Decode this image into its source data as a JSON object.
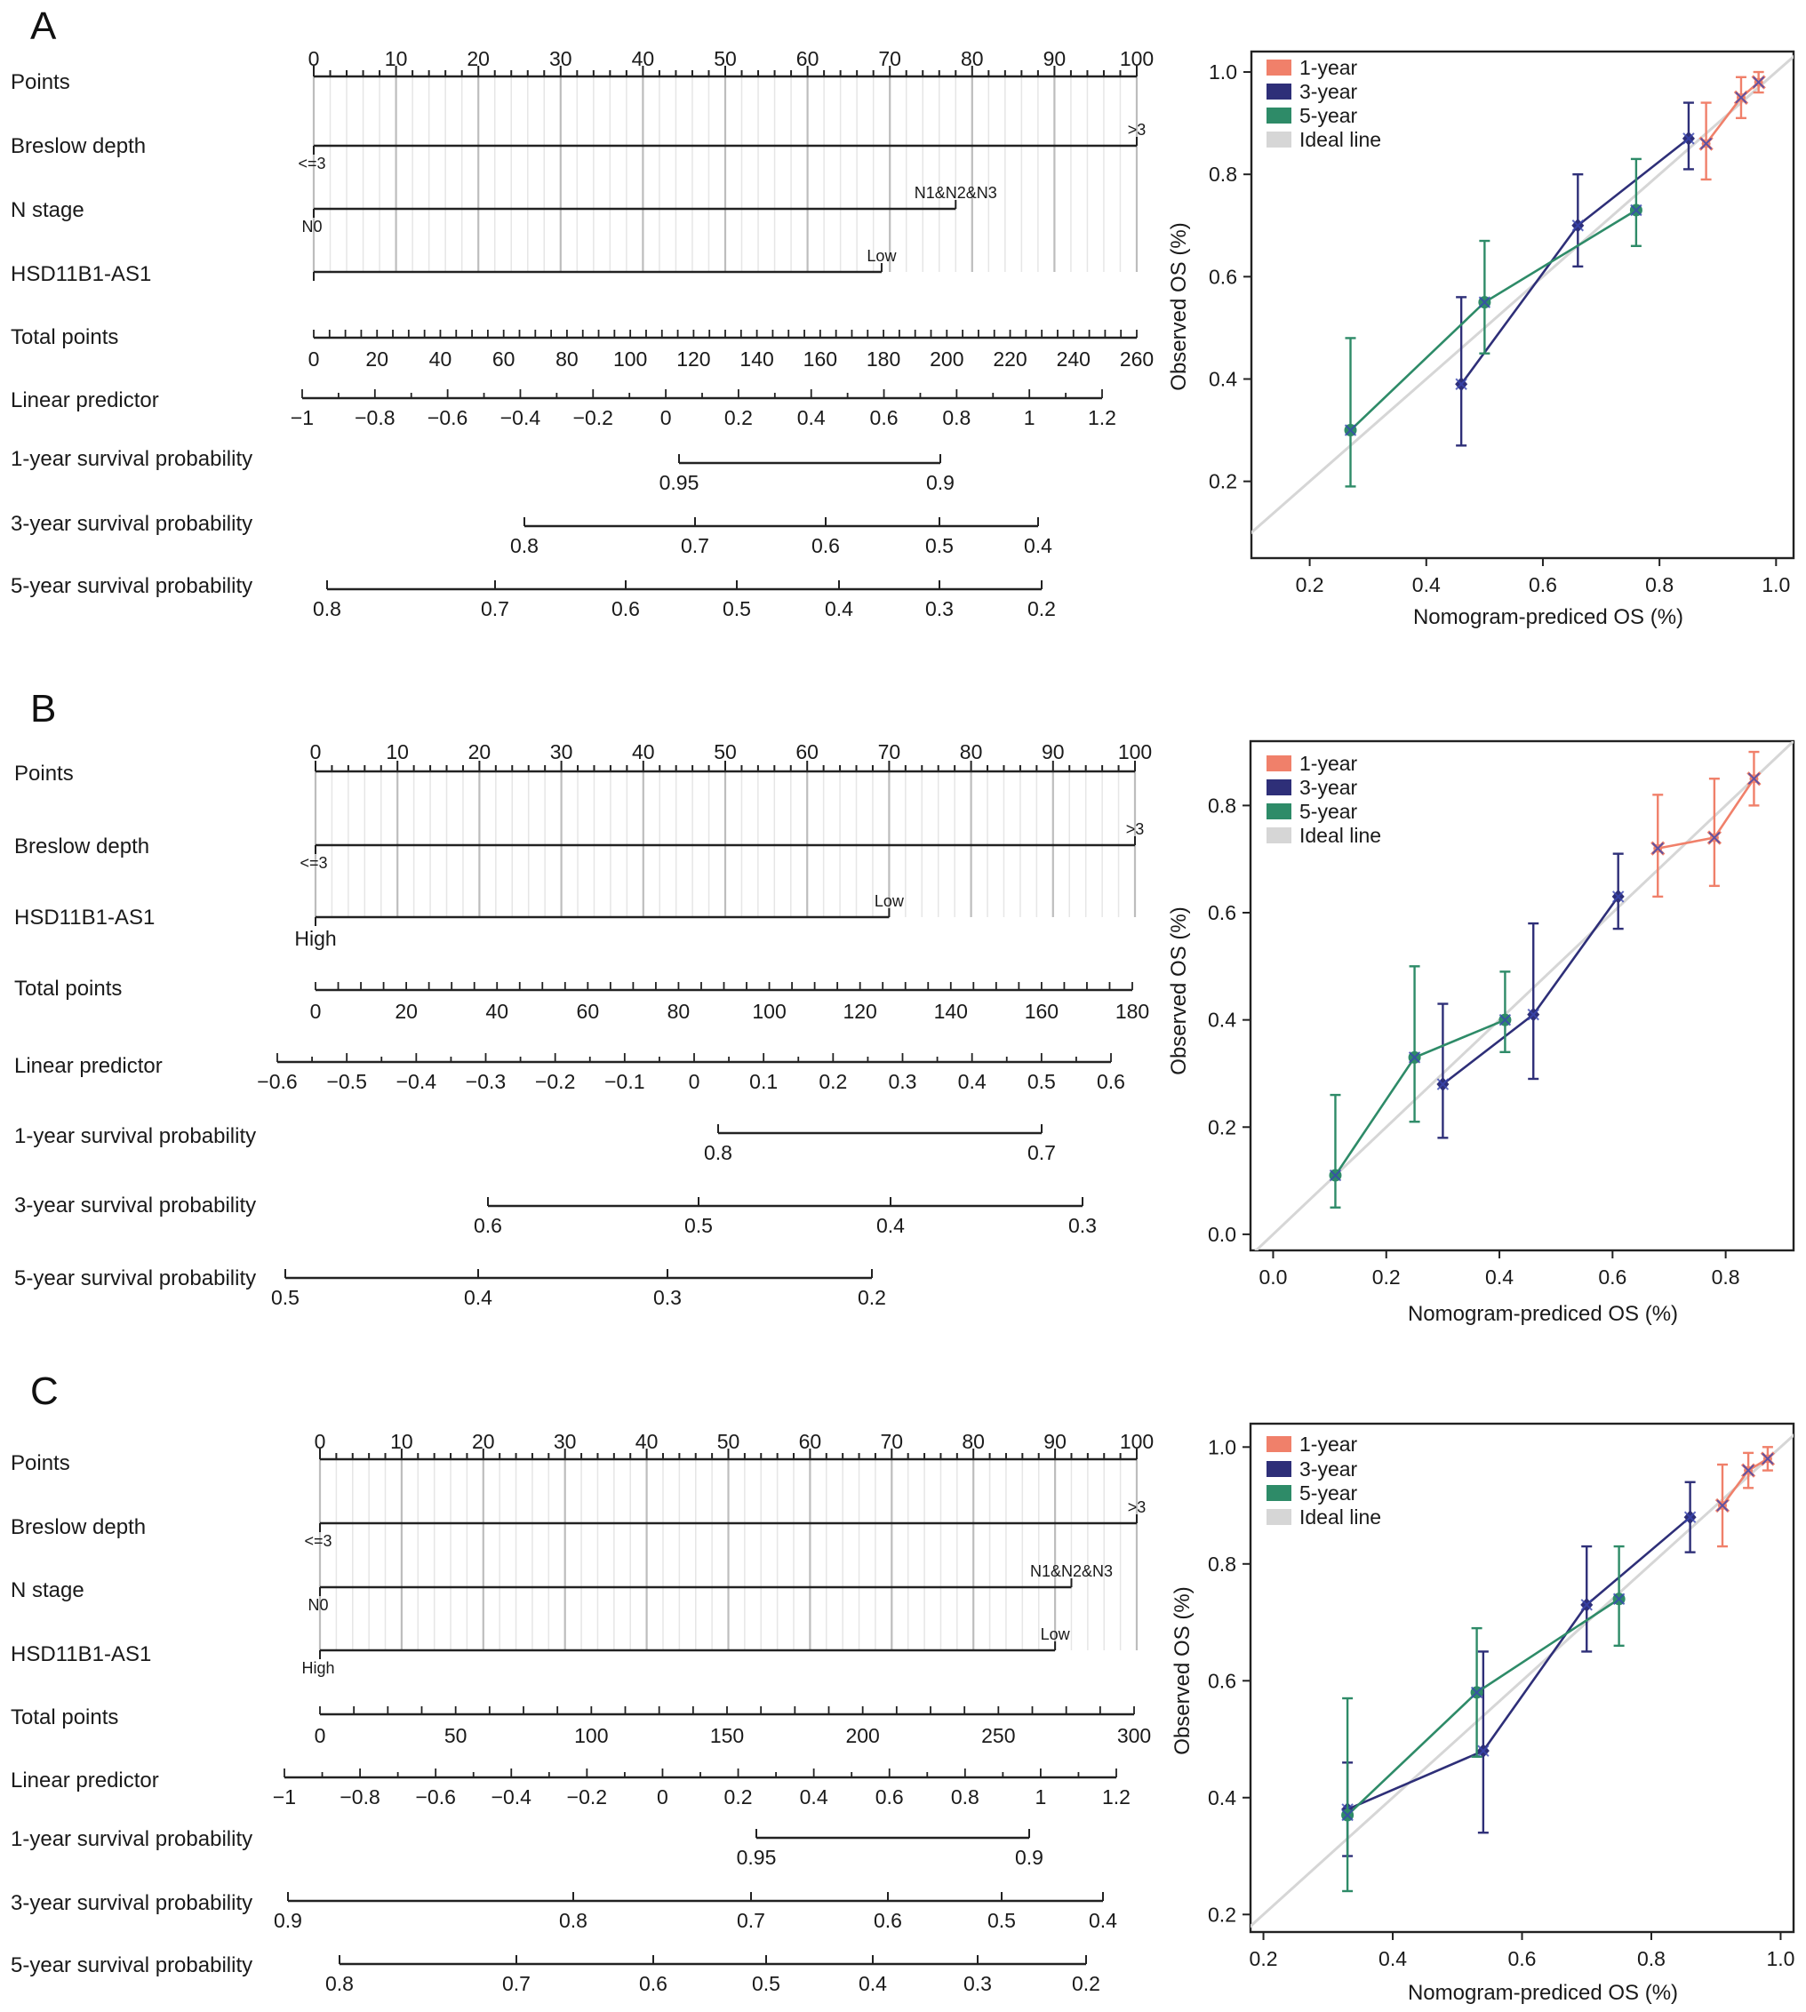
{
  "colors": {
    "one_year": "#f0806a",
    "three_year": "#2e2f78",
    "five_year": "#2e8b68",
    "ideal": "#d6d6d6",
    "grid": "#c8c8c8"
  },
  "legend": [
    "1-year",
    "3-year",
    "5-year",
    "Ideal line"
  ],
  "panels": [
    {
      "letter": "A",
      "nomogram": {
        "points_label": "Points",
        "points_ticks": [
          0,
          10,
          20,
          30,
          40,
          50,
          60,
          70,
          80,
          90,
          100
        ],
        "variables": [
          {
            "label": "Breslow depth",
            "low_label": "<=3",
            "high_label": ">3",
            "max_points": 100
          },
          {
            "label": "N stage",
            "low_label": "N0",
            "high_label": "N1&N2&N3",
            "max_points": 78
          },
          {
            "label": "HSD11B1-AS1",
            "low_label": "",
            "high_label": "Low",
            "max_points": 69
          }
        ],
        "total_label": "Total points",
        "total_ticks": [
          0,
          20,
          40,
          60,
          80,
          100,
          120,
          140,
          160,
          180,
          200,
          220,
          240,
          260
        ],
        "linear_label": "Linear predictor",
        "linear_ticks": [
          "−1",
          "−0.8",
          "−0.6",
          "−0.4",
          "−0.2",
          "0",
          "0.2",
          "0.4",
          "0.6",
          "0.8",
          "1",
          "1.2"
        ],
        "survival": [
          {
            "label": "1-year survival probability",
            "ticks": [
              "0.95",
              "0.9"
            ]
          },
          {
            "label": "3-year survival probability",
            "ticks": [
              "0.8",
              "0.7",
              "0.6",
              "0.5",
              "0.4"
            ]
          },
          {
            "label": "5-year survival probability",
            "ticks": [
              "0.8",
              "0.7",
              "0.6",
              "0.5",
              "0.4",
              "0.3",
              "0.2"
            ]
          }
        ]
      },
      "chart_data": {
        "type": "scatter",
        "xlabel": "Nomogram-prediced OS (%)",
        "ylabel": "Observed OS (%)",
        "xlim": [
          0.1,
          1.03
        ],
        "ylim": [
          0.05,
          1.04
        ],
        "xticks": [
          "0.2",
          "0.4",
          "0.6",
          "0.8",
          "1.0"
        ],
        "yticks": [
          "0.2",
          "0.4",
          "0.6",
          "0.8",
          "1.0"
        ],
        "legend_position": "top-left",
        "series": [
          {
            "name": "1-year",
            "points": [
              {
                "x": 0.88,
                "y": 0.86,
                "lo": 0.79,
                "hi": 0.94
              },
              {
                "x": 0.94,
                "y": 0.95,
                "lo": 0.91,
                "hi": 0.99
              },
              {
                "x": 0.97,
                "y": 0.98,
                "lo": 0.96,
                "hi": 1.0
              }
            ]
          },
          {
            "name": "3-year",
            "points": [
              {
                "x": 0.46,
                "y": 0.39,
                "lo": 0.27,
                "hi": 0.56
              },
              {
                "x": 0.66,
                "y": 0.7,
                "lo": 0.62,
                "hi": 0.8
              },
              {
                "x": 0.85,
                "y": 0.87,
                "lo": 0.81,
                "hi": 0.94
              }
            ]
          },
          {
            "name": "5-year",
            "points": [
              {
                "x": 0.27,
                "y": 0.3,
                "lo": 0.19,
                "hi": 0.48
              },
              {
                "x": 0.5,
                "y": 0.55,
                "lo": 0.45,
                "hi": 0.67
              },
              {
                "x": 0.76,
                "y": 0.73,
                "lo": 0.66,
                "hi": 0.83
              }
            ]
          }
        ]
      }
    },
    {
      "letter": "B",
      "nomogram": {
        "points_label": "Points",
        "points_ticks": [
          0,
          10,
          20,
          30,
          40,
          50,
          60,
          70,
          80,
          90,
          100
        ],
        "variables": [
          {
            "label": "Breslow depth",
            "low_label": "<=3",
            "high_label": ">3",
            "max_points": 100
          },
          {
            "label": "HSD11B1-AS1",
            "low_label": "High",
            "high_label": "Low",
            "max_points": 70
          }
        ],
        "total_label": "Total points",
        "total_ticks": [
          0,
          20,
          40,
          60,
          80,
          100,
          120,
          140,
          160,
          180
        ],
        "linear_label": "Linear predictor",
        "linear_ticks": [
          "−0.6",
          "−0.5",
          "−0.4",
          "−0.3",
          "−0.2",
          "−0.1",
          "0",
          "0.1",
          "0.2",
          "0.3",
          "0.4",
          "0.5",
          "0.6"
        ],
        "survival": [
          {
            "label": "1-year survival probability",
            "ticks": [
              "0.8",
              "0.7"
            ]
          },
          {
            "label": "3-year survival probability",
            "ticks": [
              "0.6",
              "0.5",
              "0.4",
              "0.3"
            ]
          },
          {
            "label": "5-year survival probability",
            "ticks": [
              "0.5",
              "0.4",
              "0.3",
              "0.2"
            ]
          }
        ]
      },
      "chart_data": {
        "type": "scatter",
        "xlabel": "Nomogram-prediced OS (%)",
        "ylabel": "Observed OS (%)",
        "xlim": [
          -0.04,
          0.92
        ],
        "ylim": [
          -0.03,
          0.92
        ],
        "xticks": [
          "0.0",
          "0.2",
          "0.4",
          "0.6",
          "0.8"
        ],
        "yticks": [
          "0.0",
          "0.2",
          "0.4",
          "0.6",
          "0.8"
        ],
        "legend_position": "top-left",
        "series": [
          {
            "name": "1-year",
            "points": [
              {
                "x": 0.68,
                "y": 0.72,
                "lo": 0.63,
                "hi": 0.82
              },
              {
                "x": 0.78,
                "y": 0.74,
                "lo": 0.65,
                "hi": 0.85
              },
              {
                "x": 0.85,
                "y": 0.85,
                "lo": 0.8,
                "hi": 0.9
              }
            ]
          },
          {
            "name": "3-year",
            "points": [
              {
                "x": 0.3,
                "y": 0.28,
                "lo": 0.18,
                "hi": 0.43
              },
              {
                "x": 0.46,
                "y": 0.41,
                "lo": 0.29,
                "hi": 0.58
              },
              {
                "x": 0.61,
                "y": 0.63,
                "lo": 0.57,
                "hi": 0.71
              }
            ]
          },
          {
            "name": "5-year",
            "points": [
              {
                "x": 0.11,
                "y": 0.11,
                "lo": 0.05,
                "hi": 0.26
              },
              {
                "x": 0.25,
                "y": 0.33,
                "lo": 0.21,
                "hi": 0.5
              },
              {
                "x": 0.41,
                "y": 0.4,
                "lo": 0.34,
                "hi": 0.49
              }
            ]
          }
        ]
      }
    },
    {
      "letter": "C",
      "nomogram": {
        "points_label": "Points",
        "points_ticks": [
          0,
          10,
          20,
          30,
          40,
          50,
          60,
          70,
          80,
          90,
          100
        ],
        "variables": [
          {
            "label": "Breslow depth",
            "low_label": "<=3",
            "high_label": ">3",
            "max_points": 100
          },
          {
            "label": "N stage",
            "low_label": "N0",
            "high_label": "N1&N2&N3",
            "max_points": 92
          },
          {
            "label": "HSD11B1-AS1",
            "low_label": "High",
            "high_label": "Low",
            "max_points": 90
          }
        ],
        "total_label": "Total points",
        "total_ticks": [
          0,
          50,
          100,
          150,
          200,
          250,
          300
        ],
        "linear_label": "Linear predictor",
        "linear_ticks": [
          "−1",
          "−0.8",
          "−0.6",
          "−0.4",
          "−0.2",
          "0",
          "0.2",
          "0.4",
          "0.6",
          "0.8",
          "1",
          "1.2"
        ],
        "survival": [
          {
            "label": "1-year survival probability",
            "ticks": [
              "0.95",
              "0.9"
            ]
          },
          {
            "label": "3-year survival probability",
            "ticks": [
              "0.9",
              "0.8",
              "0.7",
              "0.6",
              "0.5",
              "0.4"
            ]
          },
          {
            "label": "5-year survival probability",
            "ticks": [
              "0.8",
              "0.7",
              "0.6",
              "0.5",
              "0.4",
              "0.3",
              "0.2"
            ]
          }
        ]
      },
      "chart_data": {
        "type": "scatter",
        "xlabel": "Nomogram-prediced OS (%)",
        "ylabel": "Observed OS (%)",
        "xlim": [
          0.18,
          1.02
        ],
        "ylim": [
          0.17,
          1.04
        ],
        "xticks": [
          "0.2",
          "0.4",
          "0.6",
          "0.8",
          "1.0"
        ],
        "yticks": [
          "0.2",
          "0.4",
          "0.6",
          "0.8",
          "1.0"
        ],
        "legend_position": "top-left",
        "series": [
          {
            "name": "1-year",
            "points": [
              {
                "x": 0.91,
                "y": 0.9,
                "lo": 0.83,
                "hi": 0.97
              },
              {
                "x": 0.95,
                "y": 0.96,
                "lo": 0.93,
                "hi": 0.99
              },
              {
                "x": 0.98,
                "y": 0.98,
                "lo": 0.96,
                "hi": 1.0
              }
            ]
          },
          {
            "name": "3-year",
            "points": [
              {
                "x": 0.33,
                "y": 0.38,
                "lo": 0.3,
                "hi": 0.46
              },
              {
                "x": 0.54,
                "y": 0.48,
                "lo": 0.34,
                "hi": 0.65
              },
              {
                "x": 0.7,
                "y": 0.73,
                "lo": 0.65,
                "hi": 0.83
              },
              {
                "x": 0.86,
                "y": 0.88,
                "lo": 0.82,
                "hi": 0.94
              }
            ]
          },
          {
            "name": "5-year",
            "points": [
              {
                "x": 0.33,
                "y": 0.37,
                "lo": 0.24,
                "hi": 0.57
              },
              {
                "x": 0.53,
                "y": 0.58,
                "lo": 0.47,
                "hi": 0.69
              },
              {
                "x": 0.75,
                "y": 0.74,
                "lo": 0.66,
                "hi": 0.83
              }
            ]
          }
        ]
      }
    }
  ]
}
